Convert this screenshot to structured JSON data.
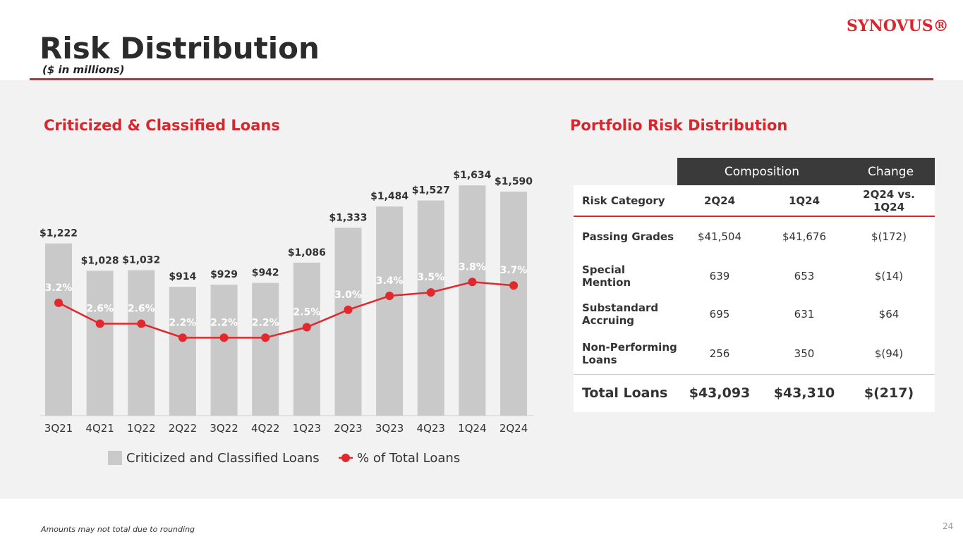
{
  "header": {
    "title": "Risk Distribution",
    "subtitle": "($ in millions)",
    "logo": "SYNOVUS®"
  },
  "chart_data": {
    "type": "bar",
    "title": "Criticized & Classified Loans",
    "categories": [
      "3Q21",
      "4Q21",
      "1Q22",
      "2Q22",
      "3Q22",
      "4Q22",
      "1Q23",
      "2Q23",
      "3Q23",
      "4Q23",
      "1Q24",
      "2Q24"
    ],
    "series": [
      {
        "name": "Criticized and Classified Loans",
        "type": "bar",
        "color": "#c9c9c9",
        "values": [
          1222,
          1028,
          1032,
          914,
          929,
          942,
          1086,
          1333,
          1484,
          1527,
          1634,
          1590
        ],
        "value_labels": [
          "$1,222",
          "$1,028",
          "$1,032",
          "$914",
          "$929",
          "$942",
          "$1,086",
          "$1,333",
          "$1,484",
          "$1,527",
          "$1,634",
          "$1,590"
        ]
      },
      {
        "name": "% of Total Loans",
        "type": "line",
        "axis": "y2",
        "color": "#e0282d",
        "values": [
          3.2,
          2.6,
          2.6,
          2.2,
          2.2,
          2.2,
          2.5,
          3.0,
          3.4,
          3.5,
          3.8,
          3.7
        ],
        "value_labels": [
          "3.2%",
          "2.6%",
          "2.6%",
          "2.2%",
          "2.2%",
          "2.2%",
          "2.5%",
          "3.0%",
          "3.4%",
          "3.5%",
          "3.8%",
          "3.7%"
        ]
      }
    ],
    "legend": "bottom"
  },
  "table": {
    "title": "Portfolio Risk Distribution",
    "group_headers": [
      "Composition",
      "Change"
    ],
    "columns": [
      "Risk Category",
      "2Q24",
      "1Q24",
      "2Q24 vs. 1Q24"
    ],
    "rows": [
      [
        "Passing Grades",
        "$41,504",
        "$41,676",
        "$(172)"
      ],
      [
        "Special Mention",
        "639",
        "653",
        "$(14)"
      ],
      [
        "Substandard Accruing",
        "695",
        "631",
        "$64"
      ],
      [
        "Non-Performing Loans",
        "256",
        "350",
        "$(94)"
      ]
    ],
    "total": [
      "Total Loans",
      "$43,093",
      "$43,310",
      "$(217)"
    ]
  },
  "footer": {
    "note": "Amounts may not total due to rounding",
    "page": "24"
  }
}
